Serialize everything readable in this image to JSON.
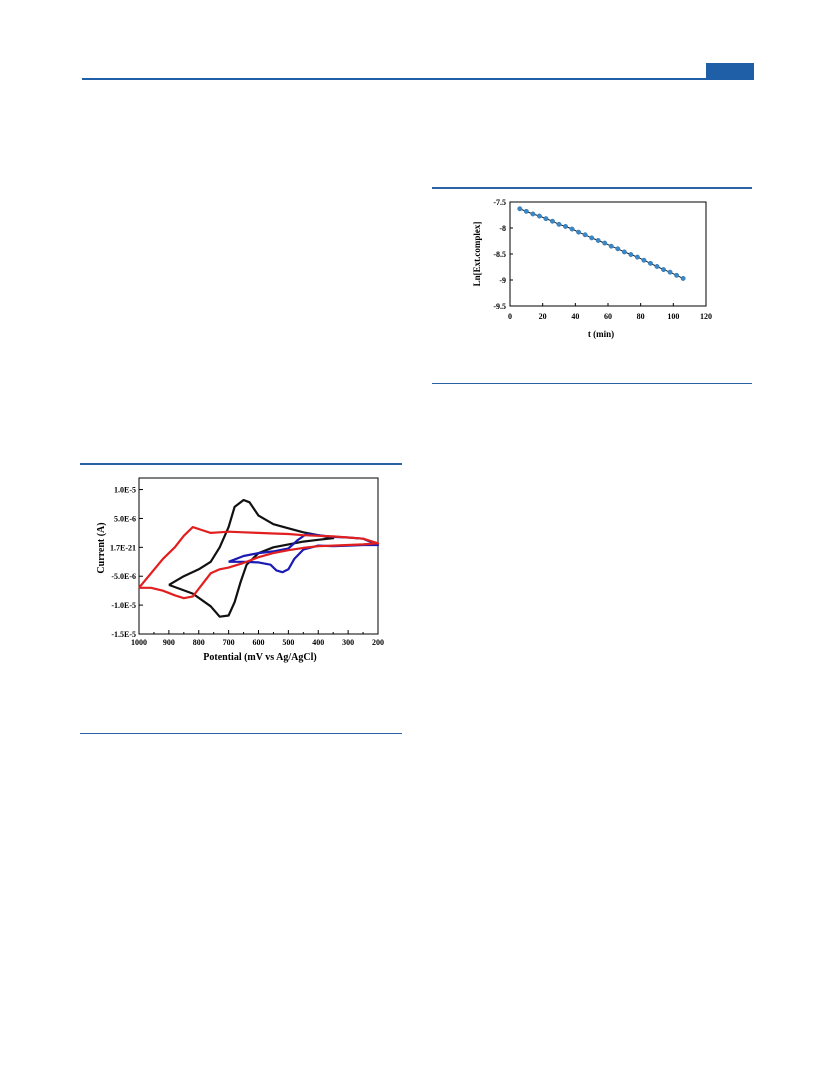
{
  "header": {
    "accent_color": "#1f5fa8"
  },
  "chart_data": [
    {
      "type": "line",
      "title": "",
      "xlabel": "Potential (mV vs Ag/AgCl)",
      "ylabel": "Current (A)",
      "xlim": [
        1000,
        200
      ],
      "ylim": [
        -1.5e-05,
        1.2e-05
      ],
      "x_ticks": [
        "1000",
        "900",
        "800",
        "700",
        "600",
        "500",
        "400",
        "300",
        "200"
      ],
      "y_ticks": [
        "1.0E-5",
        "5.0E-6",
        "1.7E-21",
        "-5.0E-6",
        "-1.0E-5",
        "-1.5E-5"
      ],
      "series": [
        {
          "color": "#111111",
          "x": [
            900,
            820,
            760,
            730,
            700,
            680,
            660,
            640,
            600,
            550,
            500,
            450,
            400,
            350,
            400,
            450,
            500,
            550,
            600,
            630,
            650,
            680,
            700,
            730,
            760,
            800,
            850,
            900
          ],
          "y": [
            -6.5e-06,
            -8e-06,
            -1.02e-05,
            -1.2e-05,
            -1.18e-05,
            -9.5e-06,
            -6e-06,
            -3e-06,
            -1e-06,
            0.0,
            5e-07,
            1e-06,
            1.3e-06,
            1.6e-06,
            2.1e-06,
            2.6e-06,
            3.3e-06,
            4e-06,
            5.5e-06,
            7.8e-06,
            8.2e-06,
            7e-06,
            3.5e-06,
            0.0,
            -2.5e-06,
            -3.8e-06,
            -5e-06,
            -6.5e-06
          ]
        },
        {
          "color": "#1a1ab4",
          "x": [
            700,
            650,
            600,
            560,
            540,
            520,
            500,
            480,
            450,
            400,
            350,
            300,
            250,
            200,
            250,
            300,
            350,
            400,
            440,
            470,
            500,
            550,
            600,
            650,
            700
          ],
          "y": [
            -2.5e-06,
            -2.5e-06,
            -2.6e-06,
            -3e-06,
            -4e-06,
            -4.3e-06,
            -3.8e-06,
            -2e-06,
            -4e-07,
            3e-07,
            2e-07,
            3e-07,
            4e-07,
            4e-07,
            1.5e-06,
            1.7e-06,
            1.8e-06,
            2.1e-06,
            2.3e-06,
            1.2e-06,
            -2e-07,
            -7e-07,
            -1e-06,
            -1.5e-06,
            -2.5e-06
          ]
        },
        {
          "color": "#e11f1f",
          "x": [
            1000,
            960,
            920,
            880,
            850,
            820,
            790,
            760,
            730,
            700,
            650,
            600,
            550,
            500,
            450,
            400,
            350,
            300,
            250,
            200,
            250,
            300,
            350,
            400,
            450,
            500,
            550,
            600,
            650,
            700,
            730,
            760,
            790,
            820,
            850,
            880,
            920,
            960,
            1000
          ],
          "y": [
            -7e-06,
            -7e-06,
            -7.5e-06,
            -8.3e-06,
            -8.8e-06,
            -8.5e-06,
            -6.5e-06,
            -4.5e-06,
            -3.8e-06,
            -3.5e-06,
            -2.7e-06,
            -1.7e-06,
            -1e-06,
            -5e-07,
            -1e-07,
            2e-07,
            3e-07,
            4e-07,
            5e-07,
            7e-07,
            1.5e-06,
            1.7e-06,
            1.9e-06,
            2e-06,
            2.1e-06,
            2.3e-06,
            2.4e-06,
            2.5e-06,
            2.6e-06,
            2.7e-06,
            2.6e-06,
            2.5e-06,
            3e-06,
            3.5e-06,
            2e-06,
            0.0,
            -2e-06,
            -4.5e-06,
            -7e-06
          ]
        }
      ]
    },
    {
      "type": "scatter",
      "title": "",
      "xlabel": "t  (min)",
      "ylabel": "Ln[Ext.complex]",
      "xlim": [
        0,
        120
      ],
      "ylim": [
        -9.5,
        -7.5
      ],
      "x_ticks": [
        "0",
        "20",
        "40",
        "60",
        "80",
        "100",
        "120"
      ],
      "y_ticks": [
        "-7.5",
        "-8",
        "-8.5",
        "-9",
        "-9.5"
      ],
      "marker_color": "#3a88c8",
      "series": [
        {
          "x": [
            6,
            10,
            14,
            18,
            22,
            26,
            30,
            34,
            38,
            42,
            46,
            50,
            54,
            58,
            62,
            66,
            70,
            74,
            78,
            82,
            86,
            90,
            94,
            98,
            102,
            106
          ],
          "y": [
            -7.63,
            -7.68,
            -7.73,
            -7.77,
            -7.82,
            -7.87,
            -7.93,
            -7.97,
            -8.02,
            -8.08,
            -8.13,
            -8.19,
            -8.24,
            -8.29,
            -8.35,
            -8.4,
            -8.46,
            -8.51,
            -8.56,
            -8.62,
            -8.68,
            -8.74,
            -8.8,
            -8.85,
            -8.91,
            -8.97
          ]
        }
      ]
    }
  ]
}
